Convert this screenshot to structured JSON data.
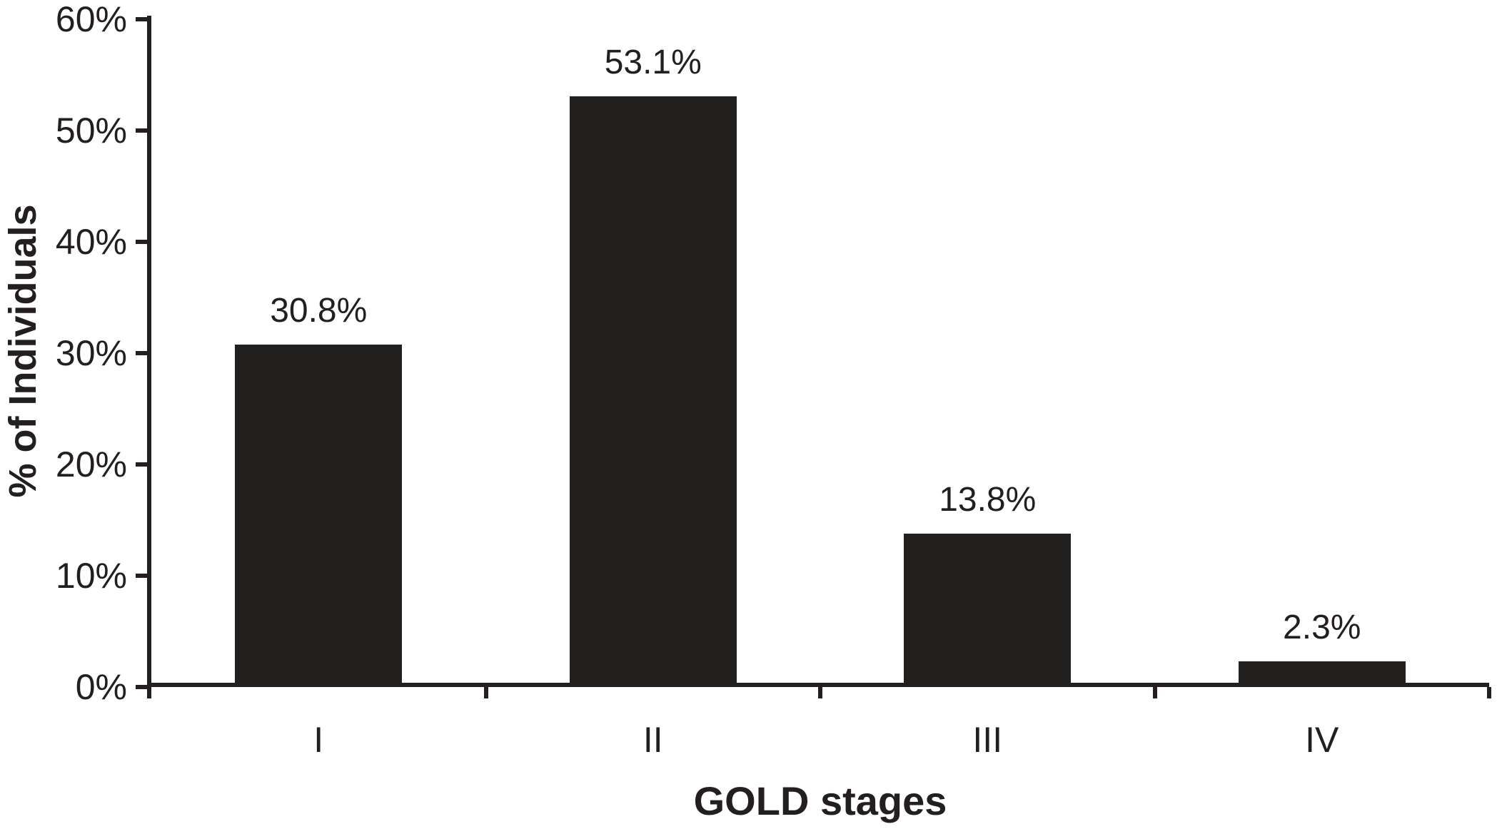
{
  "chart_data": {
    "type": "bar",
    "categories": [
      "I",
      "II",
      "III",
      "IV"
    ],
    "values": [
      30.8,
      53.1,
      13.8,
      2.3
    ],
    "value_labels": [
      "30.8%",
      "53.1%",
      "13.8%",
      "2.3%"
    ],
    "title": "",
    "xlabel": "GOLD stages",
    "ylabel": "% of Individuals",
    "ylim": [
      0,
      60
    ],
    "ytick_step": 10,
    "ytick_labels": [
      "0%",
      "10%",
      "20%",
      "30%",
      "40%",
      "50%",
      "60%"
    ],
    "grid": false,
    "legend": null,
    "bar_color": "#221f1f",
    "axis_color": "#231f20",
    "text_color": "#231f20",
    "background_color": "#ffffff"
  }
}
